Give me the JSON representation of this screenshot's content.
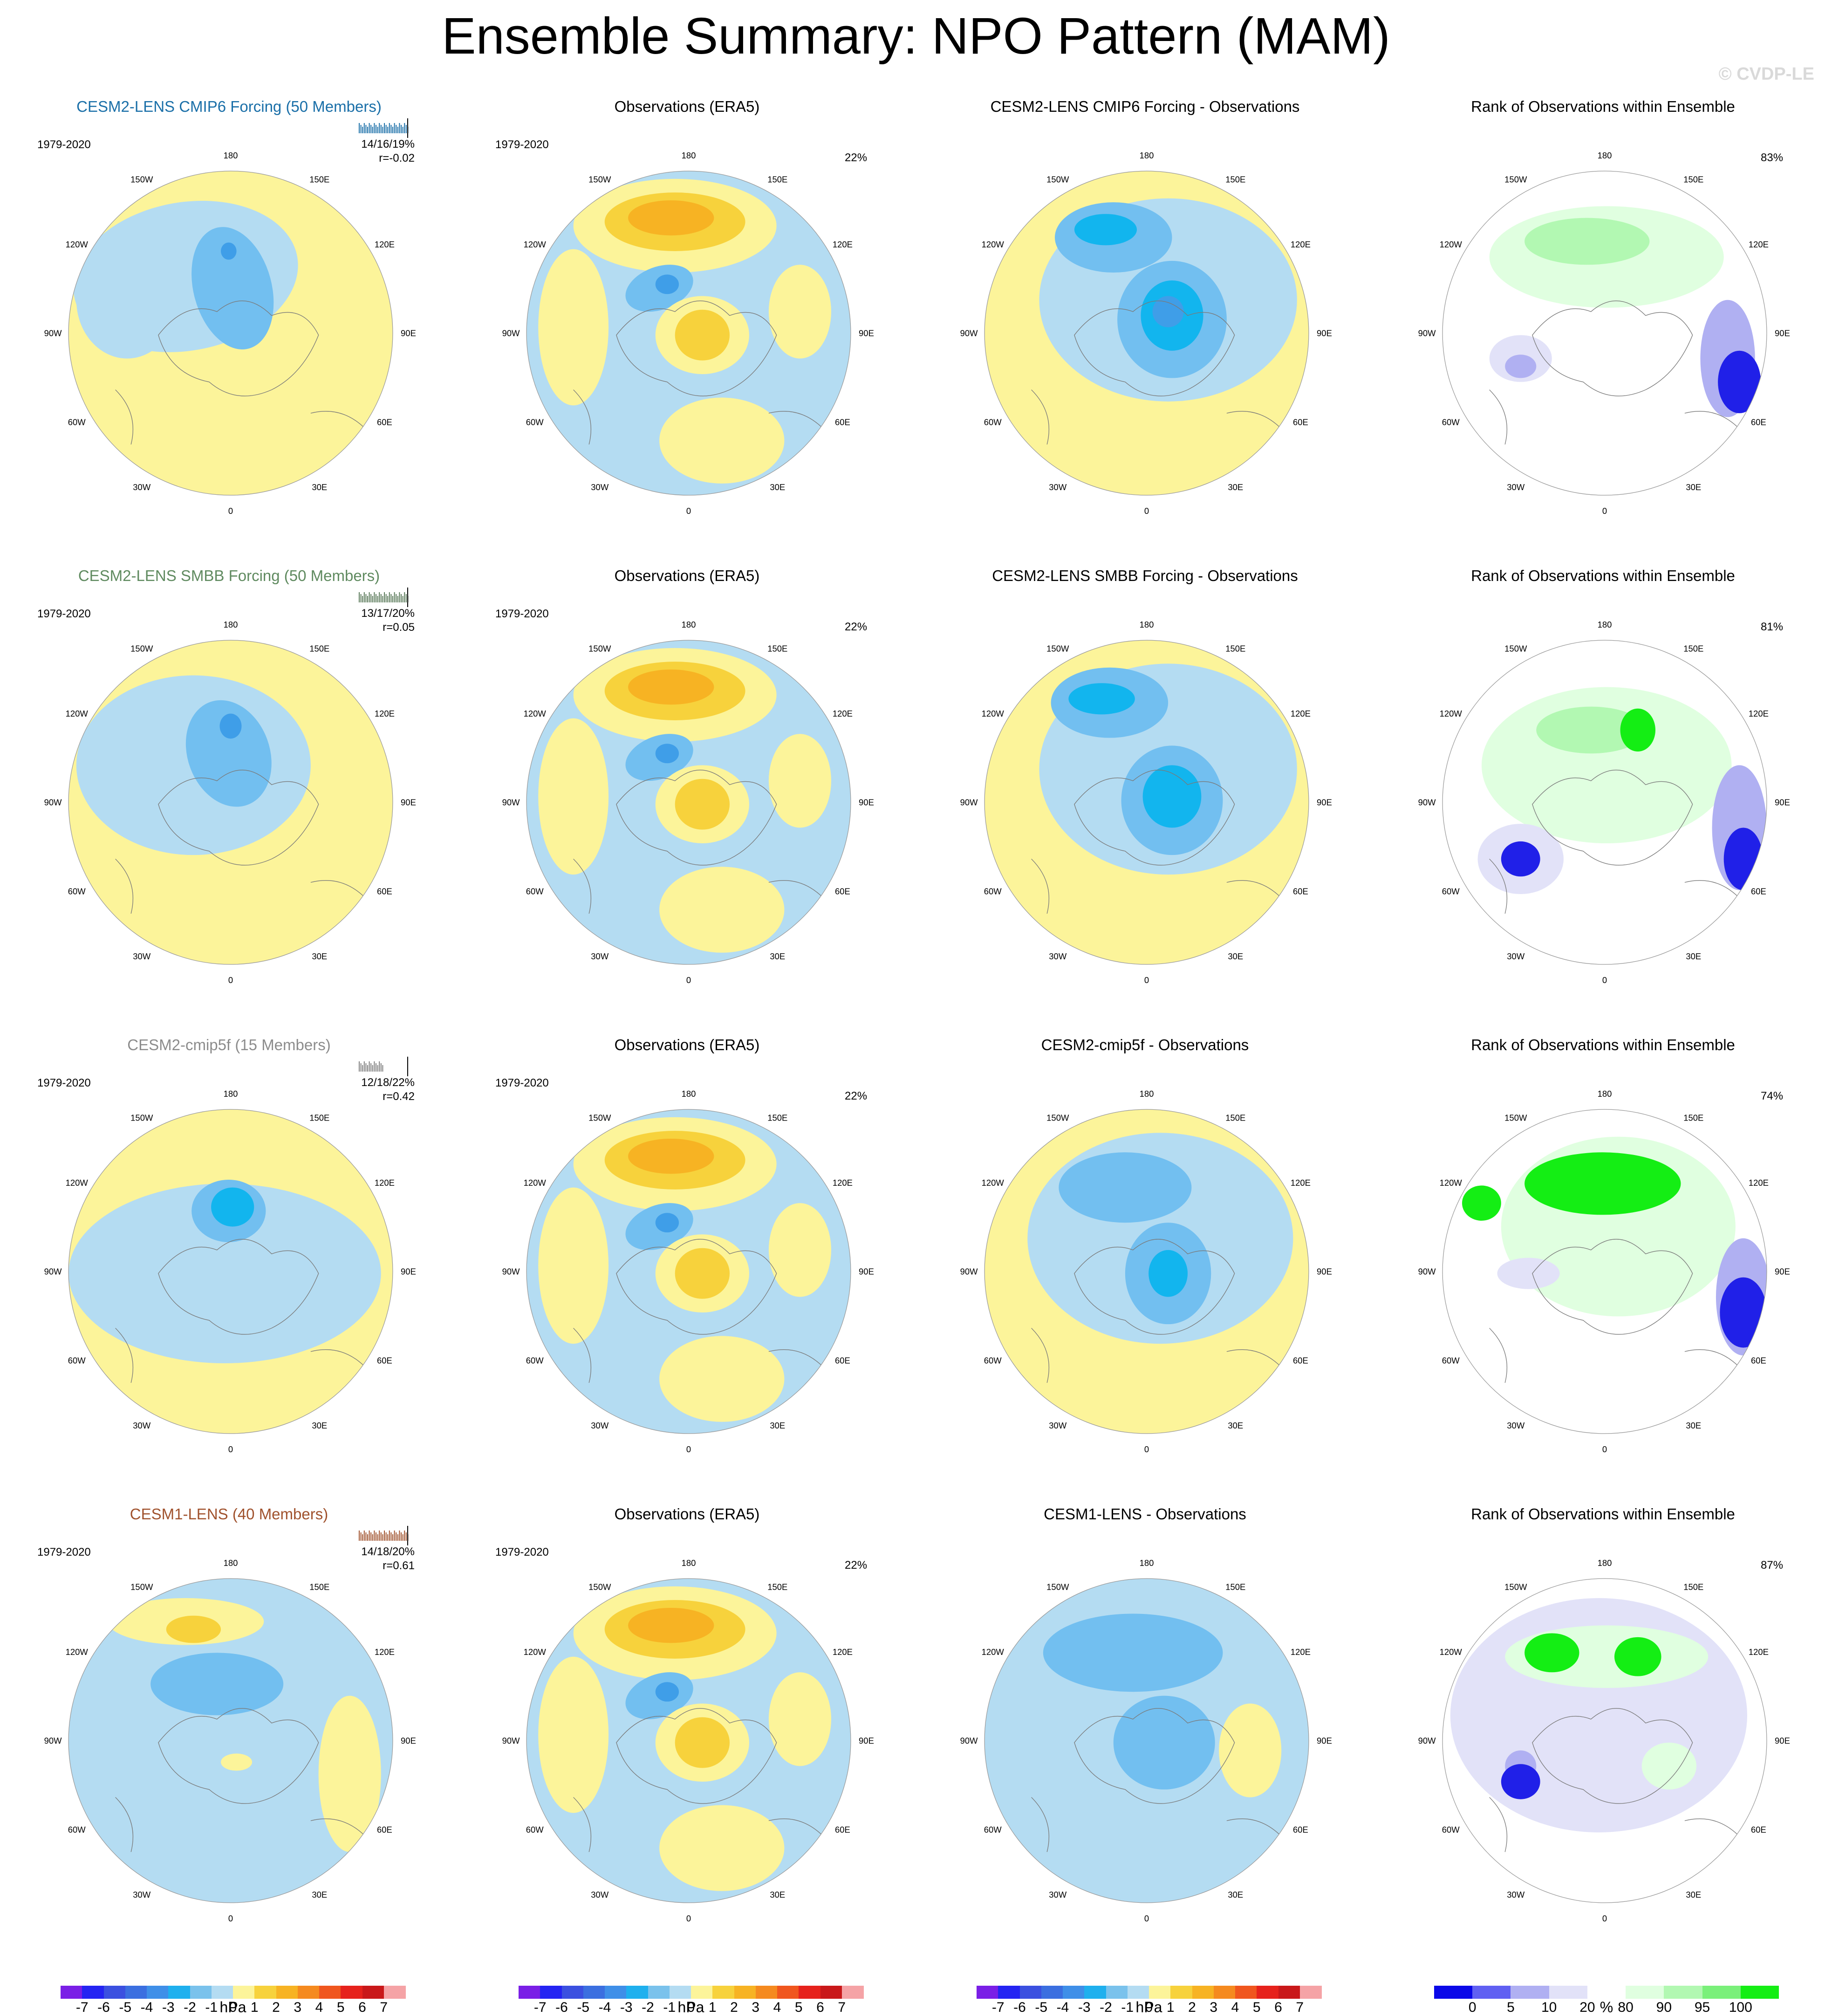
{
  "title": "Ensemble Summary: NPO Pattern (MAM)",
  "watermark": "© CVDP-LE",
  "lon_labels": [
    "180",
    "150E",
    "120E",
    "90E",
    "60E",
    "30E",
    "0",
    "30W",
    "60W",
    "90W",
    "120W",
    "150W"
  ],
  "rows": [
    {
      "model": {
        "title": "CESM2-LENS CMIP6 Forcing (50 Members)",
        "color": "#1a6fa8",
        "period": "1979-2020",
        "stat1": "14/16/19%",
        "stat2": "r=-0.02",
        "strip_color": "#1a6fa8"
      },
      "obs": {
        "title": "Observations (ERA5)",
        "period": "1979-2020",
        "pct": "22%"
      },
      "diff": {
        "title": "CESM2-LENS CMIP6 Forcing - Observations"
      },
      "rank": {
        "title": "Rank of Observations within Ensemble",
        "pct": "83%"
      }
    },
    {
      "model": {
        "title": "CESM2-LENS SMBB Forcing (50 Members)",
        "color": "#5f8a5f",
        "period": "1979-2020",
        "stat1": "13/17/20%",
        "stat2": "r=0.05",
        "strip_color": "#5a7a5a"
      },
      "obs": {
        "title": "Observations (ERA5)",
        "period": "1979-2020",
        "pct": "22%"
      },
      "diff": {
        "title": "CESM2-LENS SMBB Forcing - Observations"
      },
      "rank": {
        "title": "Rank of Observations within Ensemble",
        "pct": "81%"
      }
    },
    {
      "model": {
        "title": "CESM2-cmip5f (15 Members)",
        "color": "#8c8c8c",
        "period": "1979-2020",
        "stat1": "12/18/22%",
        "stat2": "r=0.42",
        "strip_color": "#7f7f7f"
      },
      "obs": {
        "title": "Observations (ERA5)",
        "period": "1979-2020",
        "pct": "22%"
      },
      "diff": {
        "title": "CESM2-cmip5f - Observations"
      },
      "rank": {
        "title": "Rank of Observations within Ensemble",
        "pct": "74%"
      }
    },
    {
      "model": {
        "title": "CESM1-LENS (40 Members)",
        "color": "#a0522d",
        "period": "1979-2020",
        "stat1": "14/18/20%",
        "stat2": "r=0.61",
        "strip_color": "#a0522d"
      },
      "obs": {
        "title": "Observations (ERA5)",
        "period": "1979-2020",
        "pct": "22%"
      },
      "diff": {
        "title": "CESM1-LENS - Observations"
      },
      "rank": {
        "title": "Rank of Observations within Ensemble",
        "pct": "87%"
      }
    }
  ],
  "colorbars": {
    "hpa": {
      "label": "hPa",
      "ticks": [
        "-7",
        "-6",
        "-5",
        "-4",
        "-3",
        "-2",
        "-1",
        "0",
        "1",
        "2",
        "3",
        "4",
        "5",
        "6",
        "7"
      ],
      "colors": [
        "#7a1fe6",
        "#2424f2",
        "#3b50e0",
        "#3b6fe0",
        "#3f8fe8",
        "#1fb0ee",
        "#7ac2ec",
        "#b4dcf2",
        "#fcf49a",
        "#f7d23c",
        "#f7b323",
        "#f58a1f",
        "#f0561e",
        "#e6221c",
        "#c9181a",
        "#f5a3a6"
      ]
    },
    "pct": {
      "label": "%",
      "ticks": [
        "0",
        "5",
        "10",
        "20",
        "80",
        "90",
        "95",
        "100"
      ],
      "colors": [
        "#0a08e8",
        "#6060f2",
        "#b0b0f2",
        "#e2e2f8",
        "#ffffff",
        "#e0ffe0",
        "#b2f8b2",
        "#7af07a",
        "#14ee14"
      ]
    }
  },
  "palette": {
    "light_blue": "#b4dcf2",
    "mid_blue": "#72bff0",
    "dark_blue": "#3f9ee8",
    "cyan": "#12b5ee",
    "yellow": "#fcf49a",
    "gold": "#f7d23c",
    "orange": "#f7b323",
    "rank_light_blue": "#e2e2f8",
    "rank_mid_blue": "#b0b0f2",
    "rank_dark_blue": "#2020e8",
    "rank_light_green": "#e0ffe0",
    "rank_mid_green": "#b2f8b2",
    "rank_green": "#14ee14"
  }
}
